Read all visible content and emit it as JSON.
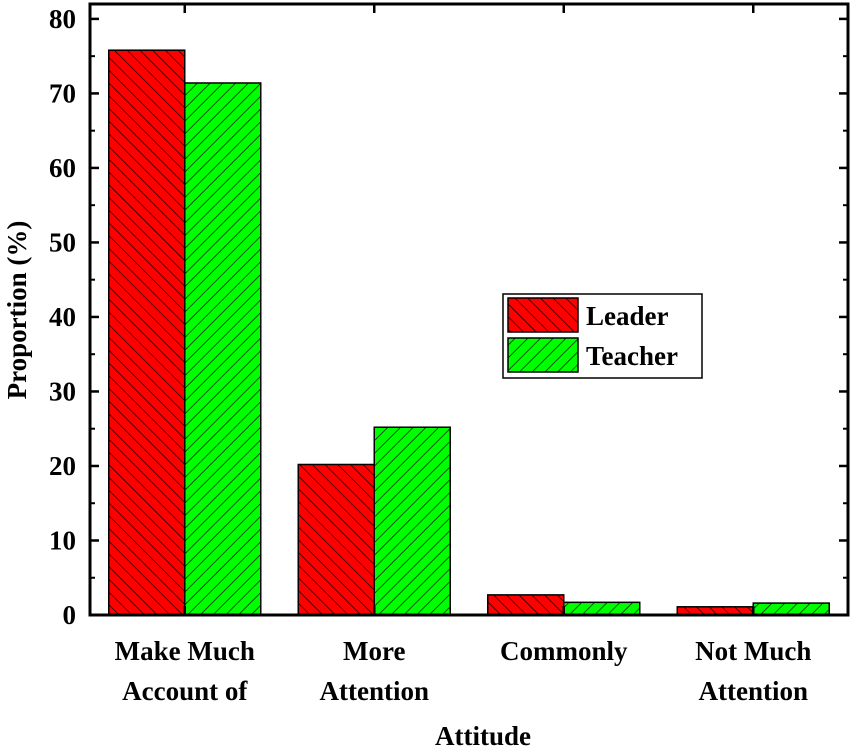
{
  "chart_data": {
    "type": "bar",
    "categories": [
      [
        "Make Much",
        "Account of"
      ],
      [
        "More",
        "Attention"
      ],
      [
        "Commonly"
      ],
      [
        "Not Much",
        "Attention"
      ]
    ],
    "series": [
      {
        "name": "Leader",
        "values": [
          75.8,
          20.2,
          2.7,
          1.1
        ],
        "color": "#ff0000",
        "hatch": "backslash"
      },
      {
        "name": "Teacher",
        "values": [
          71.4,
          25.2,
          1.7,
          1.6
        ],
        "color": "#00ff00",
        "hatch": "slash"
      }
    ],
    "xlabel": "Attitude",
    "ylabel": "Proportion (%)",
    "ylim": [
      0,
      82
    ],
    "yticks": [
      0,
      10,
      20,
      30,
      40,
      50,
      60,
      70,
      80
    ],
    "legend_position": "right-middle",
    "grid": false
  }
}
